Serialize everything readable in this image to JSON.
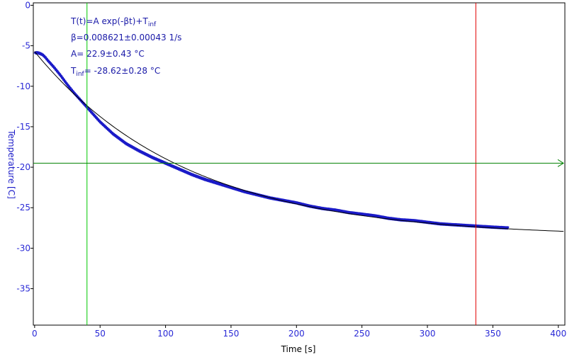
{
  "chart_data": {
    "type": "line",
    "xlabel": "Time [s]",
    "ylabel": "Temperature [C]",
    "xlim": [
      -1,
      405
    ],
    "ylim": [
      -39.5,
      0.3
    ],
    "x_ticks": [
      0,
      50,
      100,
      150,
      200,
      250,
      300,
      350,
      400
    ],
    "y_ticks": [
      0,
      -5,
      -10,
      -15,
      -20,
      -25,
      -30,
      -35
    ],
    "grid": false,
    "annotations": {
      "formula_main": "T(t)=A exp(-βt)+T",
      "formula_sub": "inf",
      "beta": "β=0.008621±0.00043 1/s",
      "amplitude": "A= 22.9±0.43 °C",
      "tinf_main": "T",
      "tinf_sub": "inf",
      "tinf_value": "= -28.62±0.28 °C"
    },
    "series": [
      {
        "color": "#1a1ac8",
        "x": [
          0,
          2,
          4,
          6,
          8,
          10,
          15,
          20,
          25,
          30,
          35,
          40,
          45,
          50,
          60,
          70,
          80,
          90,
          100,
          110,
          120,
          130,
          140,
          150,
          160,
          170,
          180,
          190,
          200,
          210,
          220,
          230,
          240,
          250,
          260,
          270,
          280,
          290,
          300,
          310,
          320,
          330,
          340,
          350,
          362
        ],
        "y": [
          -5.9,
          -5.85,
          -5.95,
          -6.1,
          -6.4,
          -6.8,
          -7.7,
          -8.7,
          -9.8,
          -10.8,
          -11.7,
          -12.6,
          -13.5,
          -14.4,
          -15.9,
          -17.1,
          -18.0,
          -18.8,
          -19.5,
          -20.2,
          -20.9,
          -21.5,
          -22.0,
          -22.5,
          -23.0,
          -23.4,
          -23.8,
          -24.1,
          -24.4,
          -24.8,
          -25.1,
          -25.3,
          -25.6,
          -25.8,
          -26.0,
          -26.3,
          -26.5,
          -26.6,
          -26.8,
          -27.0,
          -27.1,
          -27.2,
          -27.3,
          -27.4,
          -27.5
        ]
      },
      {
        "color": "#000000",
        "model": {
          "A": 22.9,
          "beta": 0.008621,
          "T_inf": -28.62
        },
        "x_range": [
          0,
          405
        ]
      }
    ],
    "cursors": [
      {
        "orientation": "vertical",
        "x": 40,
        "color": "#00c800"
      },
      {
        "orientation": "vertical",
        "x": 337,
        "color": "#e00000"
      },
      {
        "orientation": "horizontal",
        "y": -19.5,
        "color": "#008000"
      }
    ]
  }
}
